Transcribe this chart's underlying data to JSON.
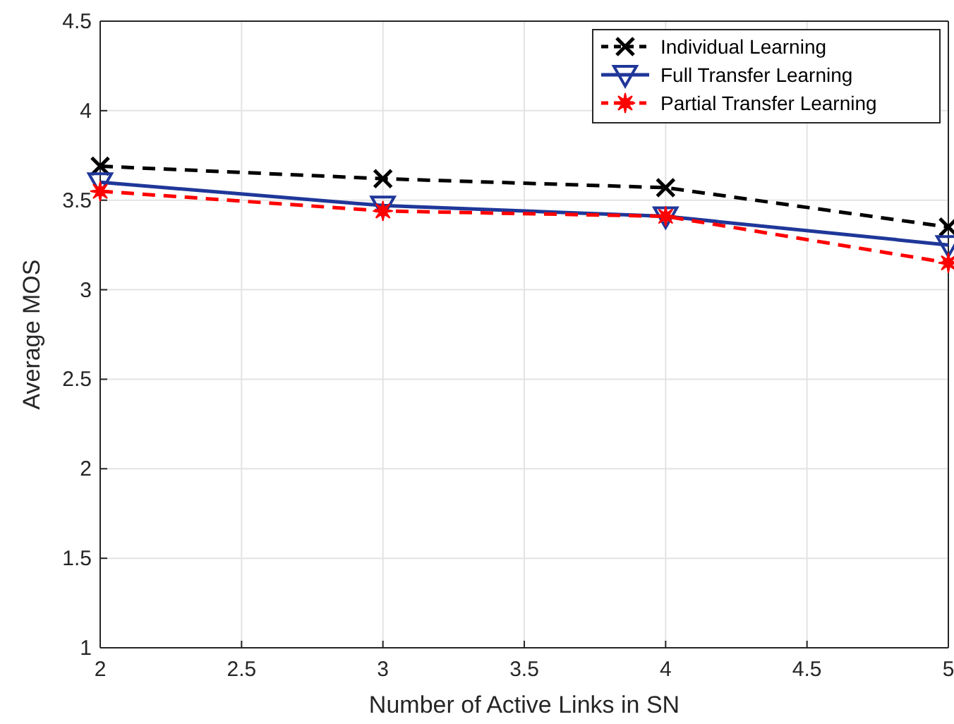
{
  "chart_data": {
    "type": "line",
    "xlabel": "Number of Active Links in SN",
    "ylabel": "Average MOS",
    "x": [
      2,
      3,
      4,
      5
    ],
    "series": [
      {
        "name": "Individual Learning",
        "color": "#000000",
        "values": [
          3.69,
          3.62,
          3.57,
          3.35
        ],
        "marker": "cross",
        "line_style": "dashed"
      },
      {
        "name": "Full Transfer Learning",
        "color": "#1f3799",
        "values": [
          3.6,
          3.47,
          3.41,
          3.25
        ],
        "marker": "triangle",
        "line_style": "solid"
      },
      {
        "name": "Partial Transfer Learning",
        "color": "#ff0000",
        "values": [
          3.55,
          3.44,
          3.41,
          3.15
        ],
        "marker": "star",
        "line_style": "dashed"
      }
    ],
    "xlim": [
      2,
      5
    ],
    "xticks": [
      2,
      2.5,
      3,
      3.5,
      4,
      4.5,
      5
    ],
    "ylim": [
      1,
      4.5
    ],
    "yticks": [
      1,
      1.5,
      2,
      2.5,
      3,
      3.5,
      4,
      4.5
    ],
    "grid": true,
    "legend": "top right"
  }
}
